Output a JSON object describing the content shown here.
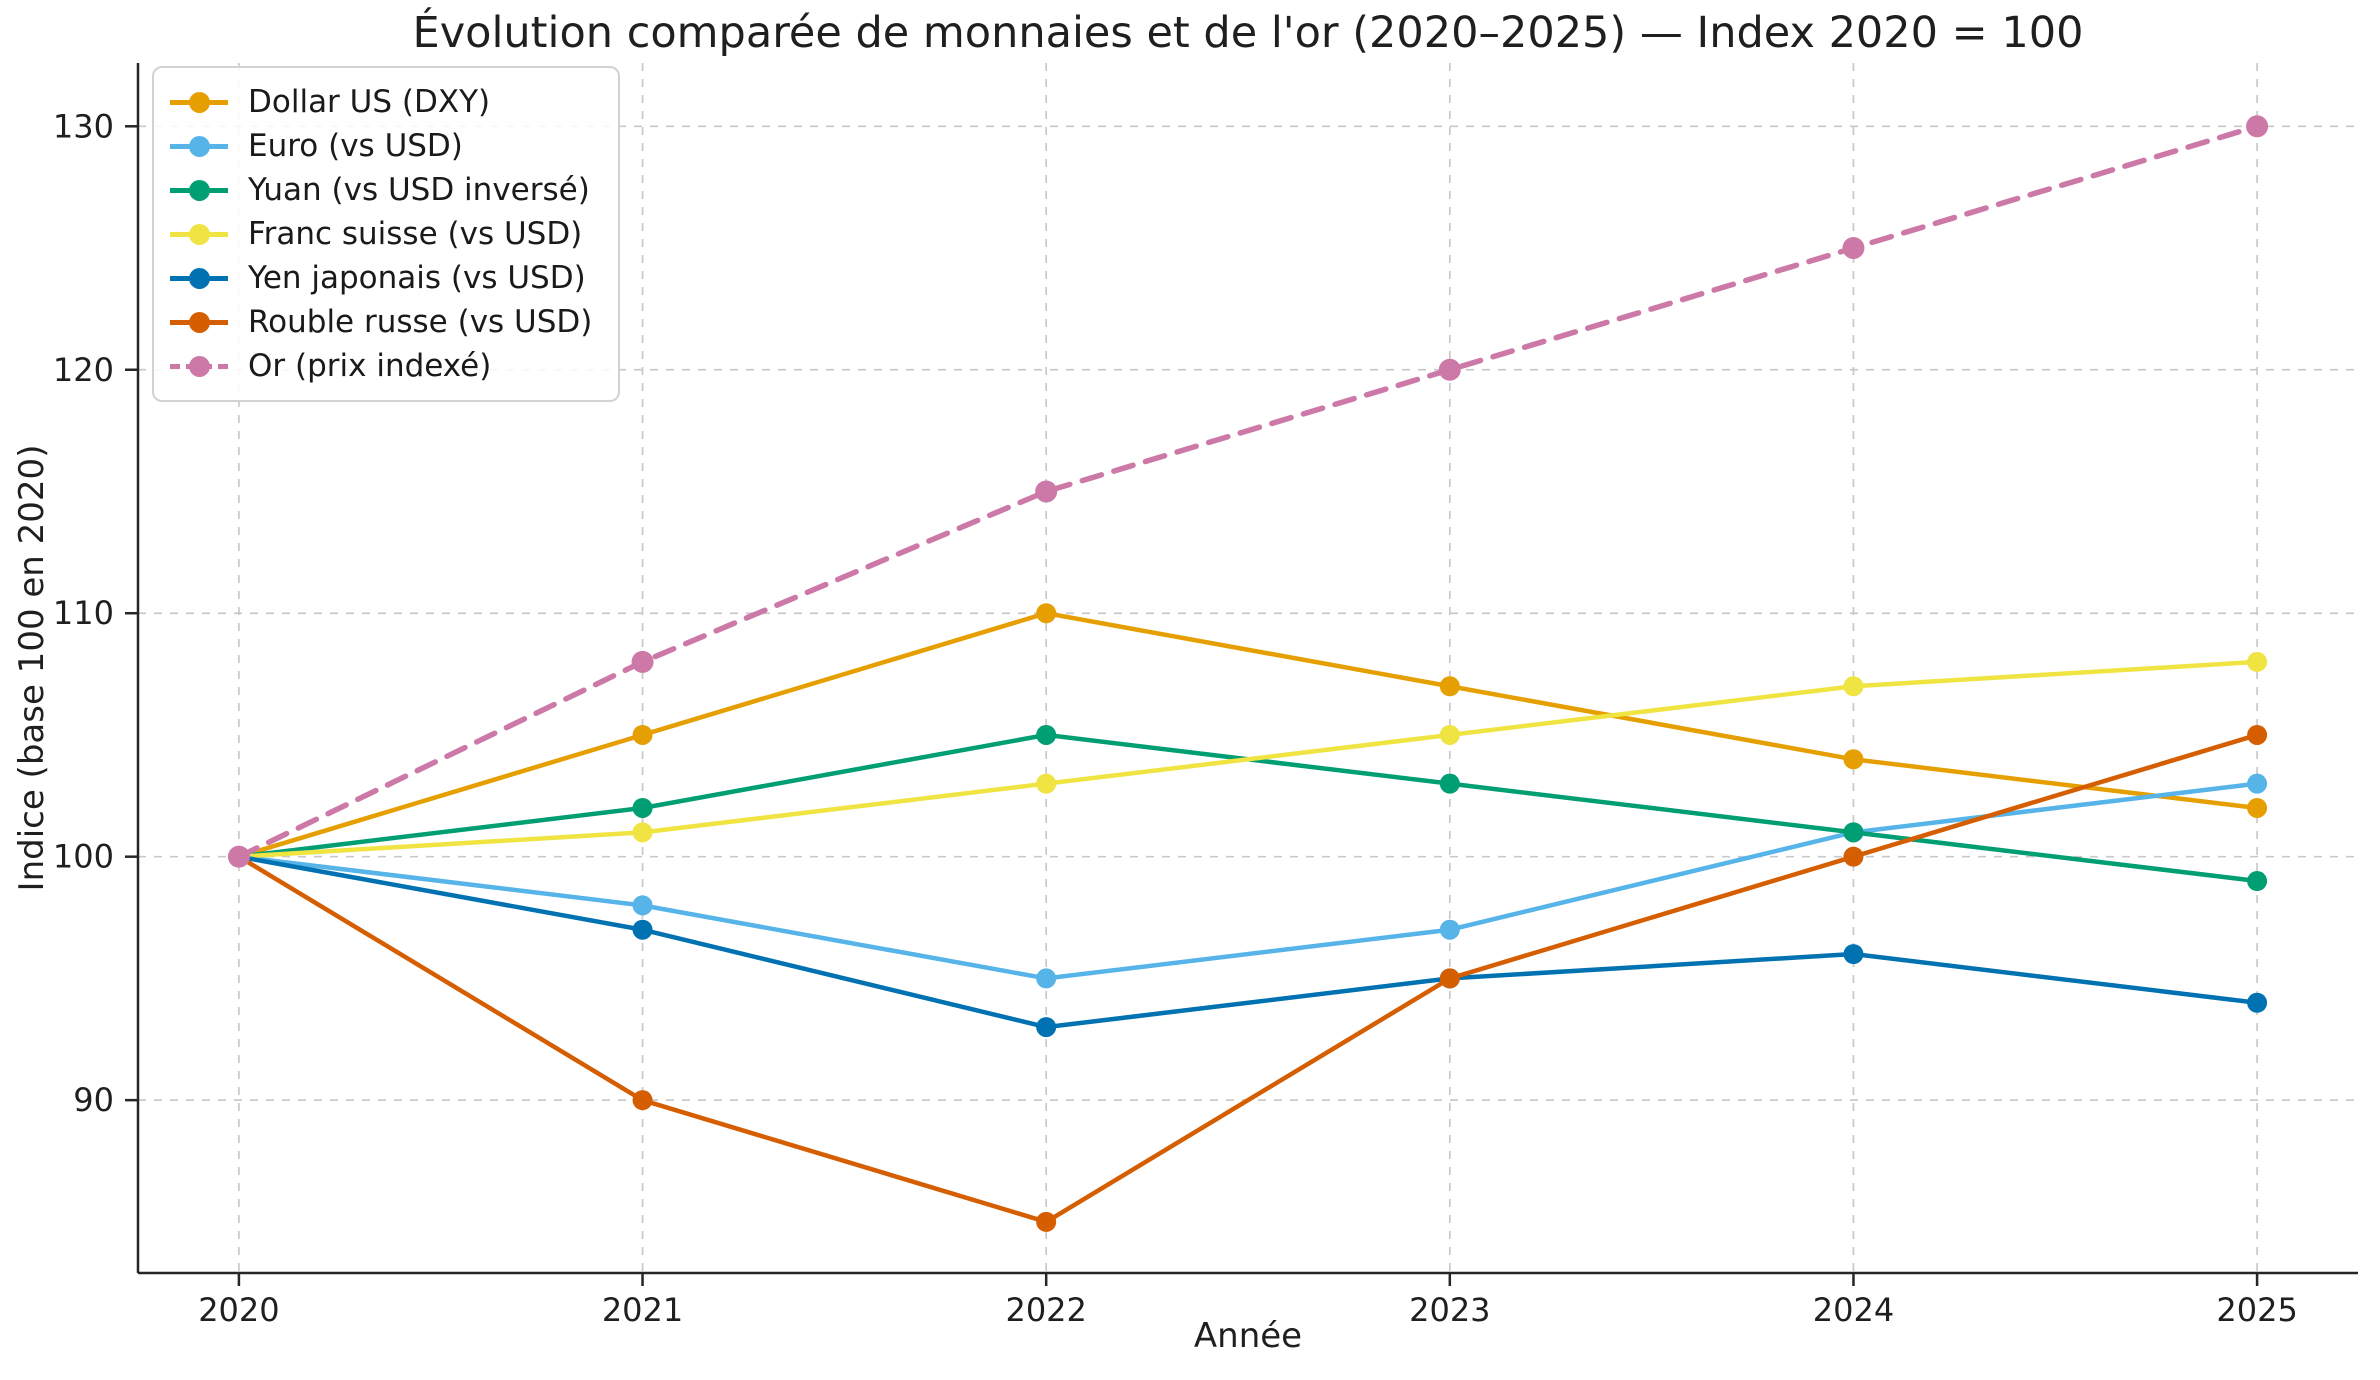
{
  "chart_data": {
    "type": "line",
    "title": "Évolution comparée de monnaies et de l'or (2020–2025) — Index 2020 = 100",
    "xlabel": "Année",
    "ylabel": "Indice (base 100 en 2020)",
    "x": [
      2020,
      2021,
      2022,
      2023,
      2024,
      2025
    ],
    "xticks": [
      2020,
      2021,
      2022,
      2023,
      2024,
      2025
    ],
    "yticks": [
      90,
      100,
      110,
      120,
      130
    ],
    "xlim": [
      2019.75,
      2025.25
    ],
    "ylim": [
      82.9,
      132.6
    ],
    "grid": true,
    "grid_style": "dashed",
    "legend_position": "upper-left",
    "axis_color": "#262626",
    "grid_color": "#c9c9c9",
    "series": [
      {
        "name": "Dollar US (DXY)",
        "color": "#E69F00",
        "dash": "solid",
        "values": [
          100,
          105,
          110,
          107,
          104,
          102
        ]
      },
      {
        "name": "Euro (vs USD)",
        "color": "#56B4E9",
        "dash": "solid",
        "values": [
          100,
          98,
          95,
          97,
          101,
          103
        ]
      },
      {
        "name": "Yuan (vs USD inversé)",
        "color": "#009E73",
        "dash": "solid",
        "values": [
          100,
          102,
          105,
          103,
          101,
          99
        ]
      },
      {
        "name": "Franc suisse (vs USD)",
        "color": "#F0E442",
        "dash": "solid",
        "values": [
          100,
          101,
          103,
          105,
          107,
          108
        ]
      },
      {
        "name": "Yen japonais (vs USD)",
        "color": "#0072B2",
        "dash": "solid",
        "values": [
          100,
          97,
          93,
          95,
          96,
          94
        ]
      },
      {
        "name": "Rouble russe (vs USD)",
        "color": "#D55E00",
        "dash": "solid",
        "values": [
          100,
          90,
          85,
          95,
          100,
          105
        ]
      },
      {
        "name": "Or (prix indexé)",
        "color": "#CC79A7",
        "dash": "dashed",
        "values": [
          100,
          108,
          115,
          120,
          125,
          130
        ]
      }
    ]
  }
}
